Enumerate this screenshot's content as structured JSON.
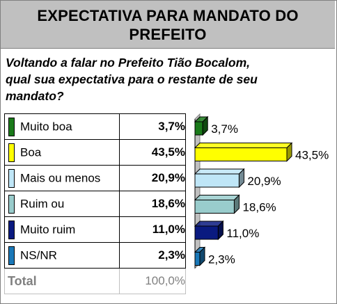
{
  "header": {
    "line1": "EXPECTATIVA PARA MANDATO DO",
    "line2": "PREFEITO"
  },
  "question": {
    "line1": "Voltando a falar no Prefeito Tião Bocalom,",
    "line2": "qual sua expectativa para o restante de seu",
    "line3": "mandato?"
  },
  "rows": [
    {
      "label": "Muito boa",
      "value": "3,7%",
      "color": "#1a7a1a"
    },
    {
      "label": "Boa",
      "value": "43,5%",
      "color": "#ffff00"
    },
    {
      "label": "Mais ou menos",
      "value": "20,9%",
      "color": "#bfe6f7"
    },
    {
      "label": "Ruim ou",
      "value": "18,6%",
      "color": "#99cccc"
    },
    {
      "label": "Muito ruim",
      "value": "11,0%",
      "color": "#0a1a80"
    },
    {
      "label": "NS/NR",
      "value": "2,3%",
      "color": "#1a78b8"
    }
  ],
  "total": {
    "label": "Total",
    "value": "100,0%"
  },
  "chart_data": {
    "type": "bar",
    "orientation": "horizontal",
    "categories": [
      "Muito boa",
      "Boa",
      "Mais ou menos",
      "Ruim ou",
      "Muito ruim",
      "NS/NR"
    ],
    "values": [
      3.7,
      43.5,
      20.9,
      18.6,
      11.0,
      2.3
    ],
    "data_labels": [
      "3,7%",
      "43,5%",
      "20,9%",
      "18,6%",
      "11,0%",
      "2,3%"
    ],
    "colors": [
      "#1a7a1a",
      "#ffff00",
      "#bfe6f7",
      "#99cccc",
      "#0a1a80",
      "#1a78b8"
    ],
    "title": "",
    "xlabel": "",
    "ylabel": "",
    "xlim": [
      0,
      43.5
    ],
    "grid": false,
    "legend": "none"
  }
}
